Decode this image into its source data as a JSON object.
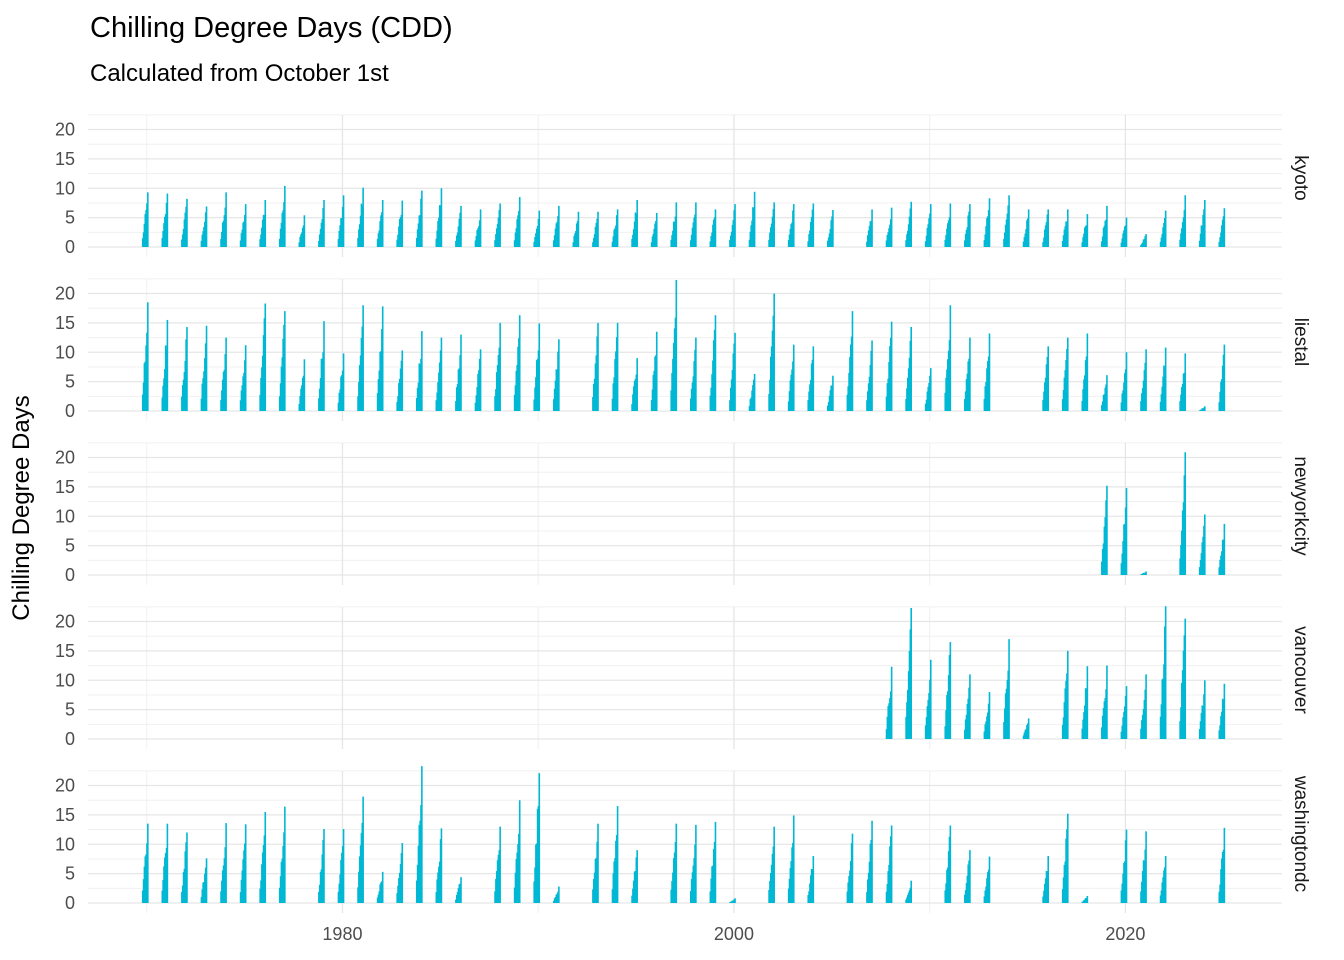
{
  "chart_data": {
    "type": "bar",
    "title": "Chilling Degree Days (CDD)",
    "subtitle": "Calculated from October 1st",
    "ylabel": "Chilling Degree Days",
    "xlabel": "",
    "x_ticks": [
      1980,
      2000,
      2020
    ],
    "y_ticks": [
      0,
      5,
      10,
      15,
      20
    ],
    "xlim": [
      1967,
      2028
    ],
    "ylim": [
      0,
      24
    ],
    "color": "#00b8d4",
    "grid": true,
    "facets": [
      {
        "name": "kyoto",
        "seasons": [
          {
            "year": 1970,
            "peak": 9.3
          },
          {
            "year": 1971,
            "peak": 9.1
          },
          {
            "year": 1972,
            "peak": 8.2
          },
          {
            "year": 1973,
            "peak": 6.9
          },
          {
            "year": 1974,
            "peak": 9.3
          },
          {
            "year": 1975,
            "peak": 7.3
          },
          {
            "year": 1976,
            "peak": 8.0
          },
          {
            "year": 1977,
            "peak": 10.4
          },
          {
            "year": 1978,
            "peak": 5.4
          },
          {
            "year": 1979,
            "peak": 8.0
          },
          {
            "year": 1980,
            "peak": 8.8
          },
          {
            "year": 1981,
            "peak": 10.1
          },
          {
            "year": 1982,
            "peak": 8.0
          },
          {
            "year": 1983,
            "peak": 7.9
          },
          {
            "year": 1984,
            "peak": 9.6
          },
          {
            "year": 1985,
            "peak": 10.0
          },
          {
            "year": 1986,
            "peak": 7.0
          },
          {
            "year": 1987,
            "peak": 6.4
          },
          {
            "year": 1988,
            "peak": 7.4
          },
          {
            "year": 1989,
            "peak": 8.5
          },
          {
            "year": 1990,
            "peak": 6.2
          },
          {
            "year": 1991,
            "peak": 7.0
          },
          {
            "year": 1992,
            "peak": 6.0
          },
          {
            "year": 1993,
            "peak": 6.0
          },
          {
            "year": 1994,
            "peak": 6.4
          },
          {
            "year": 1995,
            "peak": 8.0
          },
          {
            "year": 1996,
            "peak": 5.8
          },
          {
            "year": 1997,
            "peak": 7.6
          },
          {
            "year": 1998,
            "peak": 7.6
          },
          {
            "year": 1999,
            "peak": 6.4
          },
          {
            "year": 2000,
            "peak": 7.3
          },
          {
            "year": 2001,
            "peak": 9.4
          },
          {
            "year": 2002,
            "peak": 7.6
          },
          {
            "year": 2003,
            "peak": 7.3
          },
          {
            "year": 2004,
            "peak": 7.4
          },
          {
            "year": 2005,
            "peak": 6.3
          },
          {
            "year": 2007,
            "peak": 6.4
          },
          {
            "year": 2008,
            "peak": 6.7
          },
          {
            "year": 2009,
            "peak": 7.7
          },
          {
            "year": 2010,
            "peak": 7.3
          },
          {
            "year": 2011,
            "peak": 7.4
          },
          {
            "year": 2012,
            "peak": 7.3
          },
          {
            "year": 2013,
            "peak": 8.3
          },
          {
            "year": 2014,
            "peak": 8.8
          },
          {
            "year": 2015,
            "peak": 6.4
          },
          {
            "year": 2016,
            "peak": 6.4
          },
          {
            "year": 2017,
            "peak": 6.4
          },
          {
            "year": 2018,
            "peak": 5.6
          },
          {
            "year": 2019,
            "peak": 7.0
          },
          {
            "year": 2020,
            "peak": 5.0
          },
          {
            "year": 2021,
            "peak": 2.2
          },
          {
            "year": 2022,
            "peak": 6.2
          },
          {
            "year": 2023,
            "peak": 8.8
          },
          {
            "year": 2024,
            "peak": 8.0
          },
          {
            "year": 2025,
            "peak": 6.6
          }
        ]
      },
      {
        "name": "liestal",
        "seasons": [
          {
            "year": 1970,
            "peak": 18.5
          },
          {
            "year": 1971,
            "peak": 15.5
          },
          {
            "year": 1972,
            "peak": 14.3
          },
          {
            "year": 1973,
            "peak": 14.5
          },
          {
            "year": 1974,
            "peak": 12.5
          },
          {
            "year": 1975,
            "peak": 11.2
          },
          {
            "year": 1976,
            "peak": 18.3
          },
          {
            "year": 1977,
            "peak": 17.0
          },
          {
            "year": 1978,
            "peak": 8.8
          },
          {
            "year": 1979,
            "peak": 15.3
          },
          {
            "year": 1980,
            "peak": 9.8
          },
          {
            "year": 1981,
            "peak": 18.0
          },
          {
            "year": 1982,
            "peak": 17.8
          },
          {
            "year": 1983,
            "peak": 10.3
          },
          {
            "year": 1984,
            "peak": 13.6
          },
          {
            "year": 1985,
            "peak": 12.5
          },
          {
            "year": 1986,
            "peak": 13.0
          },
          {
            "year": 1987,
            "peak": 10.5
          },
          {
            "year": 1988,
            "peak": 15.0
          },
          {
            "year": 1989,
            "peak": 16.3
          },
          {
            "year": 1990,
            "peak": 14.9
          },
          {
            "year": 1991,
            "peak": 12.2
          },
          {
            "year": 1993,
            "peak": 15.0
          },
          {
            "year": 1994,
            "peak": 15.0
          },
          {
            "year": 1995,
            "peak": 9.0
          },
          {
            "year": 1996,
            "peak": 13.5
          },
          {
            "year": 1997,
            "peak": 22.3
          },
          {
            "year": 1998,
            "peak": 12.5
          },
          {
            "year": 1999,
            "peak": 16.3
          },
          {
            "year": 2000,
            "peak": 13.3
          },
          {
            "year": 2001,
            "peak": 6.3
          },
          {
            "year": 2002,
            "peak": 20.0
          },
          {
            "year": 2003,
            "peak": 11.3
          },
          {
            "year": 2004,
            "peak": 11.0
          },
          {
            "year": 2005,
            "peak": 6.0
          },
          {
            "year": 2006,
            "peak": 17.0
          },
          {
            "year": 2007,
            "peak": 12.0
          },
          {
            "year": 2008,
            "peak": 15.2
          },
          {
            "year": 2009,
            "peak": 14.3
          },
          {
            "year": 2010,
            "peak": 7.3
          },
          {
            "year": 2011,
            "peak": 18.0
          },
          {
            "year": 2012,
            "peak": 12.5
          },
          {
            "year": 2013,
            "peak": 13.2
          },
          {
            "year": 2016,
            "peak": 11.0
          },
          {
            "year": 2017,
            "peak": 12.5
          },
          {
            "year": 2018,
            "peak": 13.2
          },
          {
            "year": 2019,
            "peak": 6.1
          },
          {
            "year": 2020,
            "peak": 10.0
          },
          {
            "year": 2021,
            "peak": 10.5
          },
          {
            "year": 2022,
            "peak": 10.8
          },
          {
            "year": 2023,
            "peak": 9.8
          },
          {
            "year": 2024,
            "peak": 0.8
          },
          {
            "year": 2025,
            "peak": 11.3
          }
        ]
      },
      {
        "name": "newyorkcity",
        "seasons": [
          {
            "year": 2019,
            "peak": 15.2
          },
          {
            "year": 2020,
            "peak": 14.8
          },
          {
            "year": 2021,
            "peak": 0.6
          },
          {
            "year": 2023,
            "peak": 20.9
          },
          {
            "year": 2024,
            "peak": 10.3
          },
          {
            "year": 2025,
            "peak": 8.7
          }
        ]
      },
      {
        "name": "vancouver",
        "seasons": [
          {
            "year": 2008,
            "peak": 12.3
          },
          {
            "year": 2009,
            "peak": 22.3
          },
          {
            "year": 2010,
            "peak": 13.5
          },
          {
            "year": 2011,
            "peak": 16.5
          },
          {
            "year": 2012,
            "peak": 11.0
          },
          {
            "year": 2013,
            "peak": 8.0
          },
          {
            "year": 2014,
            "peak": 17.0
          },
          {
            "year": 2015,
            "peak": 3.5
          },
          {
            "year": 2017,
            "peak": 15.0
          },
          {
            "year": 2018,
            "peak": 12.4
          },
          {
            "year": 2019,
            "peak": 12.5
          },
          {
            "year": 2020,
            "peak": 9.0
          },
          {
            "year": 2021,
            "peak": 11.0
          },
          {
            "year": 2022,
            "peak": 22.6
          },
          {
            "year": 2023,
            "peak": 20.5
          },
          {
            "year": 2024,
            "peak": 10.0
          },
          {
            "year": 2025,
            "peak": 9.4
          }
        ]
      },
      {
        "name": "washingtondc",
        "seasons": [
          {
            "year": 1970,
            "peak": 13.5
          },
          {
            "year": 1971,
            "peak": 13.5
          },
          {
            "year": 1972,
            "peak": 12.0
          },
          {
            "year": 1973,
            "peak": 7.6
          },
          {
            "year": 1974,
            "peak": 13.6
          },
          {
            "year": 1975,
            "peak": 13.4
          },
          {
            "year": 1976,
            "peak": 15.5
          },
          {
            "year": 1977,
            "peak": 16.4
          },
          {
            "year": 1979,
            "peak": 12.6
          },
          {
            "year": 1980,
            "peak": 12.6
          },
          {
            "year": 1981,
            "peak": 18.1
          },
          {
            "year": 1982,
            "peak": 5.3
          },
          {
            "year": 1983,
            "peak": 10.2
          },
          {
            "year": 1984,
            "peak": 23.3
          },
          {
            "year": 1985,
            "peak": 12.7
          },
          {
            "year": 1986,
            "peak": 4.4
          },
          {
            "year": 1988,
            "peak": 13.0
          },
          {
            "year": 1989,
            "peak": 17.5
          },
          {
            "year": 1990,
            "peak": 22.1
          },
          {
            "year": 1991,
            "peak": 2.8
          },
          {
            "year": 1993,
            "peak": 13.5
          },
          {
            "year": 1994,
            "peak": 16.5
          },
          {
            "year": 1995,
            "peak": 9.0
          },
          {
            "year": 1997,
            "peak": 13.5
          },
          {
            "year": 1998,
            "peak": 13.3
          },
          {
            "year": 1999,
            "peak": 13.8
          },
          {
            "year": 2000,
            "peak": 0.8
          },
          {
            "year": 2002,
            "peak": 13.0
          },
          {
            "year": 2003,
            "peak": 14.9
          },
          {
            "year": 2004,
            "peak": 8.0
          },
          {
            "year": 2006,
            "peak": 11.8
          },
          {
            "year": 2007,
            "peak": 14.0
          },
          {
            "year": 2008,
            "peak": 13.2
          },
          {
            "year": 2009,
            "peak": 3.8
          },
          {
            "year": 2011,
            "peak": 13.2
          },
          {
            "year": 2012,
            "peak": 9.0
          },
          {
            "year": 2013,
            "peak": 7.9
          },
          {
            "year": 2016,
            "peak": 8.0
          },
          {
            "year": 2017,
            "peak": 15.2
          },
          {
            "year": 2018,
            "peak": 1.2
          },
          {
            "year": 2020,
            "peak": 12.5
          },
          {
            "year": 2021,
            "peak": 12.2
          },
          {
            "year": 2022,
            "peak": 8.0
          },
          {
            "year": 2025,
            "peak": 12.8
          }
        ]
      }
    ]
  }
}
